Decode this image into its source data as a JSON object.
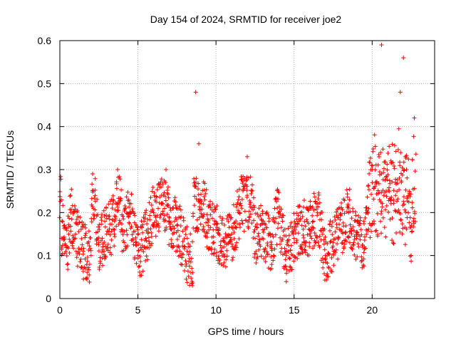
{
  "chart_data": {
    "type": "scatter",
    "title": "Day 154 of 2024, SRMTID for receiver joe2",
    "xlabel": "GPS time / hours",
    "ylabel": "SRMTID / TECUs",
    "xlim": [
      0,
      24
    ],
    "ylim": [
      0,
      0.6
    ],
    "x_ticks": [
      "0",
      "5",
      "10",
      "15",
      "20"
    ],
    "y_ticks": [
      "0",
      "0.1",
      "0.2",
      "0.3",
      "0.4",
      "0.5",
      "0.6"
    ],
    "grid": true,
    "marker": "+",
    "color": "#ff0000",
    "series": [
      {
        "name": "SRMTID",
        "x_range_hours": [
          0,
          22.8
        ],
        "sample_points": [
          [
            0.1,
            0.14
          ],
          [
            0.3,
            0.17
          ],
          [
            0.5,
            0.12
          ],
          [
            0.7,
            0.2
          ],
          [
            1.0,
            0.15
          ],
          [
            1.5,
            0.11
          ],
          [
            2.0,
            0.1
          ],
          [
            2.1,
            0.29
          ],
          [
            2.5,
            0.13
          ],
          [
            3.0,
            0.15
          ],
          [
            3.5,
            0.18
          ],
          [
            3.7,
            0.3
          ],
          [
            4.0,
            0.16
          ],
          [
            4.5,
            0.2
          ],
          [
            5.0,
            0.1
          ],
          [
            5.5,
            0.14
          ],
          [
            6.0,
            0.2
          ],
          [
            6.5,
            0.22
          ],
          [
            6.8,
            0.3
          ],
          [
            7.0,
            0.18
          ],
          [
            7.5,
            0.17
          ],
          [
            8.0,
            0.12
          ],
          [
            8.5,
            0.06
          ],
          [
            8.7,
            0.48
          ],
          [
            8.9,
            0.36
          ],
          [
            9.2,
            0.22
          ],
          [
            9.5,
            0.17
          ],
          [
            10.0,
            0.16
          ],
          [
            10.5,
            0.12
          ],
          [
            11.0,
            0.15
          ],
          [
            11.5,
            0.2
          ],
          [
            12.0,
            0.33
          ],
          [
            12.5,
            0.14
          ],
          [
            13.0,
            0.16
          ],
          [
            13.5,
            0.12
          ],
          [
            14.0,
            0.2
          ],
          [
            14.5,
            0.1
          ],
          [
            15.0,
            0.14
          ],
          [
            15.5,
            0.17
          ],
          [
            16.0,
            0.16
          ],
          [
            16.5,
            0.2
          ],
          [
            17.0,
            0.1
          ],
          [
            17.5,
            0.13
          ],
          [
            18.0,
            0.16
          ],
          [
            18.5,
            0.2
          ],
          [
            19.0,
            0.14
          ],
          [
            19.5,
            0.12
          ],
          [
            20.0,
            0.3
          ],
          [
            20.3,
            0.27
          ],
          [
            20.6,
            0.59
          ],
          [
            20.9,
            0.25
          ],
          [
            21.2,
            0.32
          ],
          [
            21.5,
            0.24
          ],
          [
            21.8,
            0.48
          ],
          [
            22.0,
            0.56
          ],
          [
            22.2,
            0.3
          ],
          [
            22.5,
            0.1
          ],
          [
            22.7,
            0.42
          ]
        ]
      }
    ]
  }
}
